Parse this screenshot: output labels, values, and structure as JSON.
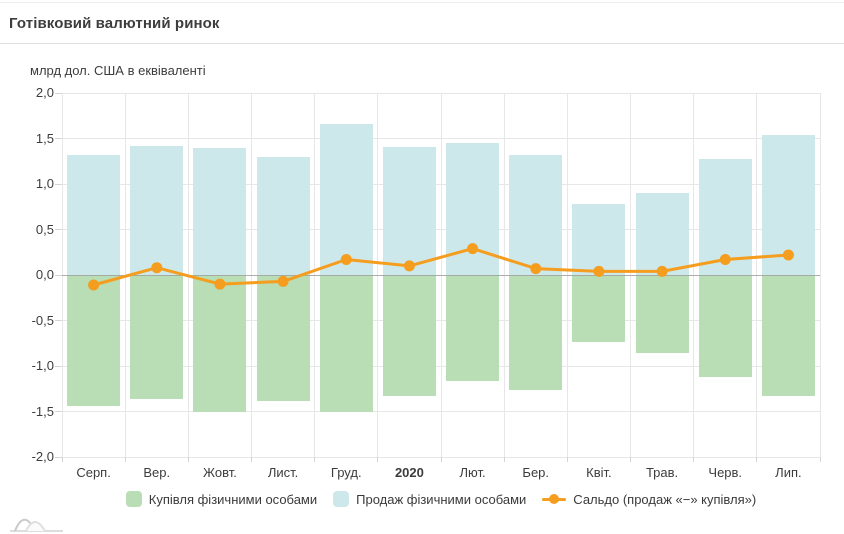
{
  "header": {
    "title": "Готівковий валютний ринок"
  },
  "chart_data": {
    "type": "combo-bar-line",
    "title": "Готівковий валютний ринок",
    "ylabel": "млрд дол. США в еквіваленті",
    "xlabel": "",
    "categories": [
      "Серп.",
      "Вер.",
      "Жовт.",
      "Лист.",
      "Груд.",
      "2020",
      "Лют.",
      "Бер.",
      "Квіт.",
      "Трав.",
      "Черв.",
      "Лип."
    ],
    "bold_category_index": 5,
    "ylim": [
      -2.0,
      2.0
    ],
    "grid": true,
    "legend_position": "bottom",
    "yticks": [
      {
        "v": 2.0,
        "label": "2,0"
      },
      {
        "v": 1.5,
        "label": "1,5"
      },
      {
        "v": 1.0,
        "label": "1,0"
      },
      {
        "v": 0.5,
        "label": "0,5"
      },
      {
        "v": 0.0,
        "label": "0,0"
      },
      {
        "v": -0.5,
        "label": "-0,5"
      },
      {
        "v": -1.0,
        "label": "-1,0"
      },
      {
        "v": -1.5,
        "label": "-1,5"
      },
      {
        "v": -2.0,
        "label": "-2,0"
      }
    ],
    "series": [
      {
        "key": "buy-bar",
        "name": "Купівля фізичними особами",
        "type": "bar",
        "color": "#b9ddb5",
        "values": [
          -1.44,
          -1.36,
          -1.51,
          -1.38,
          -1.5,
          -1.33,
          -1.17,
          -1.26,
          -0.74,
          -0.86,
          -1.12,
          -1.33
        ]
      },
      {
        "key": "sell-bar",
        "name": "Продаж фізичними особами",
        "type": "bar",
        "color": "#cde8ea",
        "values": [
          1.32,
          1.42,
          1.4,
          1.3,
          1.66,
          1.41,
          1.45,
          1.32,
          0.78,
          0.9,
          1.27,
          1.54
        ]
      },
      {
        "key": "saldo-line",
        "name": "Сальдо (продаж «−» купівля»)",
        "type": "line",
        "color": "#f59d1e",
        "values": [
          -0.11,
          0.08,
          -0.1,
          -0.07,
          0.17,
          0.1,
          0.29,
          0.07,
          0.04,
          0.04,
          0.17,
          0.22
        ]
      }
    ]
  },
  "colors": {
    "buy_green": "#b9ddb5",
    "sell_blue": "#cde8ea",
    "saldo_orange": "#f59d1e",
    "gridline": "#e7e7e7",
    "zero_line": "#9f9f9f",
    "text": "#3c3c3c"
  }
}
